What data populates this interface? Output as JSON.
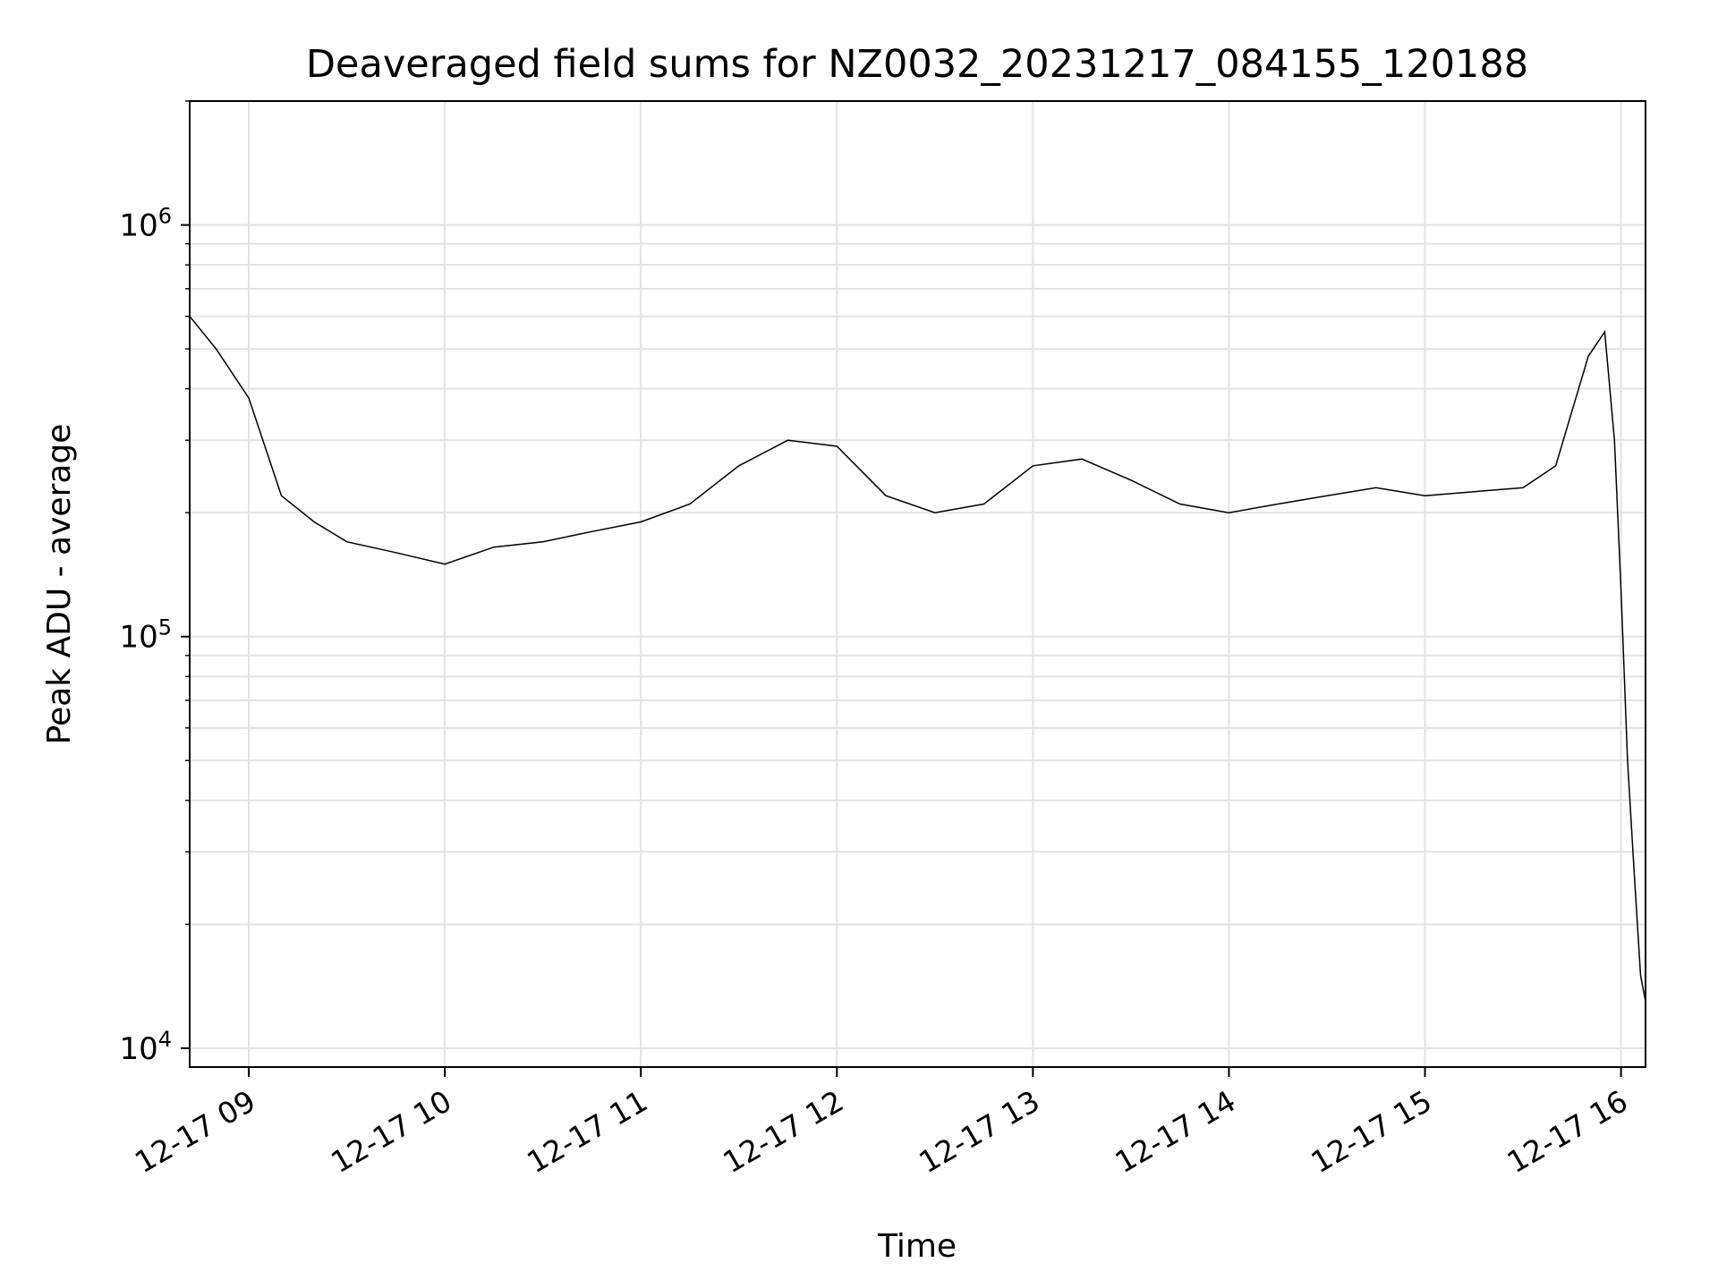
{
  "chart_data": {
    "type": "line",
    "title": "Deaveraged field sums for NZ0032_20231217_084155_120188",
    "xlabel": "Time",
    "ylabel": "Peak ADU - average",
    "yscale": "log",
    "ylim": [
      9000,
      2000000
    ],
    "xlim": [
      "2023-12-17 08:41:55",
      "2023-12-17 16:07:30"
    ],
    "x_ticks": [
      {
        "t": "2023-12-17 09:00",
        "label": "12-17 09"
      },
      {
        "t": "2023-12-17 10:00",
        "label": "12-17 10"
      },
      {
        "t": "2023-12-17 11:00",
        "label": "12-17 11"
      },
      {
        "t": "2023-12-17 12:00",
        "label": "12-17 12"
      },
      {
        "t": "2023-12-17 13:00",
        "label": "12-17 13"
      },
      {
        "t": "2023-12-17 14:00",
        "label": "12-17 14"
      },
      {
        "t": "2023-12-17 15:00",
        "label": "12-17 15"
      },
      {
        "t": "2023-12-17 16:00",
        "label": "12-17 16"
      }
    ],
    "y_ticks": [
      {
        "value": 10000,
        "base": "10",
        "exp": "4"
      },
      {
        "value": 100000,
        "base": "10",
        "exp": "5"
      },
      {
        "value": 1000000,
        "base": "10",
        "exp": "6"
      }
    ],
    "grid": true,
    "line_color": "#000000",
    "series": [
      {
        "points": [
          [
            "2023-12-17 08:41:55",
            600000
          ],
          [
            "2023-12-17 08:50",
            500000
          ],
          [
            "2023-12-17 09:00",
            380000
          ],
          [
            "2023-12-17 09:10",
            220000
          ],
          [
            "2023-12-17 09:20",
            190000
          ],
          [
            "2023-12-17 09:30",
            170000
          ],
          [
            "2023-12-17 09:45",
            160000
          ],
          [
            "2023-12-17 10:00",
            150000
          ],
          [
            "2023-12-17 10:15",
            165000
          ],
          [
            "2023-12-17 10:30",
            170000
          ],
          [
            "2023-12-17 10:45",
            180000
          ],
          [
            "2023-12-17 11:00",
            190000
          ],
          [
            "2023-12-17 11:15",
            210000
          ],
          [
            "2023-12-17 11:30",
            260000
          ],
          [
            "2023-12-17 11:45",
            300000
          ],
          [
            "2023-12-17 12:00",
            290000
          ],
          [
            "2023-12-17 12:15",
            220000
          ],
          [
            "2023-12-17 12:30",
            200000
          ],
          [
            "2023-12-17 12:45",
            210000
          ],
          [
            "2023-12-17 13:00",
            260000
          ],
          [
            "2023-12-17 13:15",
            270000
          ],
          [
            "2023-12-17 13:30",
            240000
          ],
          [
            "2023-12-17 13:45",
            210000
          ],
          [
            "2023-12-17 14:00",
            200000
          ],
          [
            "2023-12-17 14:15",
            210000
          ],
          [
            "2023-12-17 14:30",
            220000
          ],
          [
            "2023-12-17 14:45",
            230000
          ],
          [
            "2023-12-17 15:00",
            220000
          ],
          [
            "2023-12-17 15:15",
            225000
          ],
          [
            "2023-12-17 15:30",
            230000
          ],
          [
            "2023-12-17 15:40",
            260000
          ],
          [
            "2023-12-17 15:50",
            480000
          ],
          [
            "2023-12-17 15:55",
            550000
          ],
          [
            "2023-12-17 15:58",
            300000
          ],
          [
            "2023-12-17 16:00",
            130000
          ],
          [
            "2023-12-17 16:02",
            50000
          ],
          [
            "2023-12-17 16:04",
            27000
          ],
          [
            "2023-12-17 16:06",
            15000
          ],
          [
            "2023-12-17 16:07:30",
            13000
          ]
        ]
      }
    ]
  }
}
